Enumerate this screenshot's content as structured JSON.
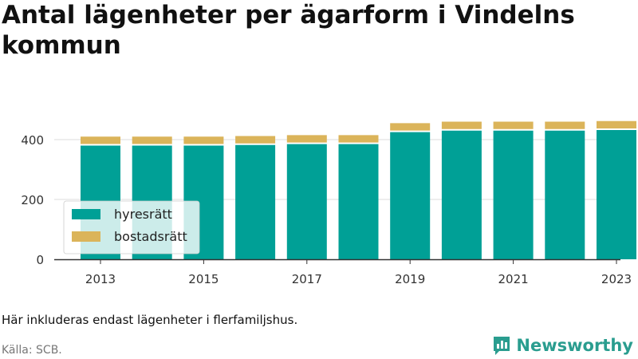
{
  "title": "Antal lägenheter per ägarform i Vindelns kommun",
  "note": "Här inkluderas endast lägenheter i flerfamiljshus.",
  "source": "Källa: SCB.",
  "brand": {
    "name": "Newsworthy",
    "icon": "newsworthy-logo-icon"
  },
  "colors": {
    "hyresratt": "#00a096",
    "bostadsratt": "#dbb45a"
  },
  "chart_data": {
    "type": "bar",
    "stacked": true,
    "categories": [
      2013,
      2014,
      2015,
      2016,
      2017,
      2018,
      2019,
      2020,
      2021,
      2022,
      2023
    ],
    "series": [
      {
        "name": "hyresrätt",
        "values": [
          380,
          380,
          380,
          382,
          385,
          385,
          425,
          430,
          430,
          430,
          432
        ]
      },
      {
        "name": "bostadsrätt",
        "values": [
          30,
          30,
          30,
          30,
          30,
          30,
          30,
          30,
          30,
          30,
          30
        ]
      }
    ],
    "x_tick_labels": [
      "2013",
      "2015",
      "2017",
      "2019",
      "2021",
      "2023"
    ],
    "y_ticks": [
      0,
      200,
      400
    ],
    "ylim": [
      0,
      480
    ],
    "grid": true,
    "legend_position": "bottom-left"
  }
}
